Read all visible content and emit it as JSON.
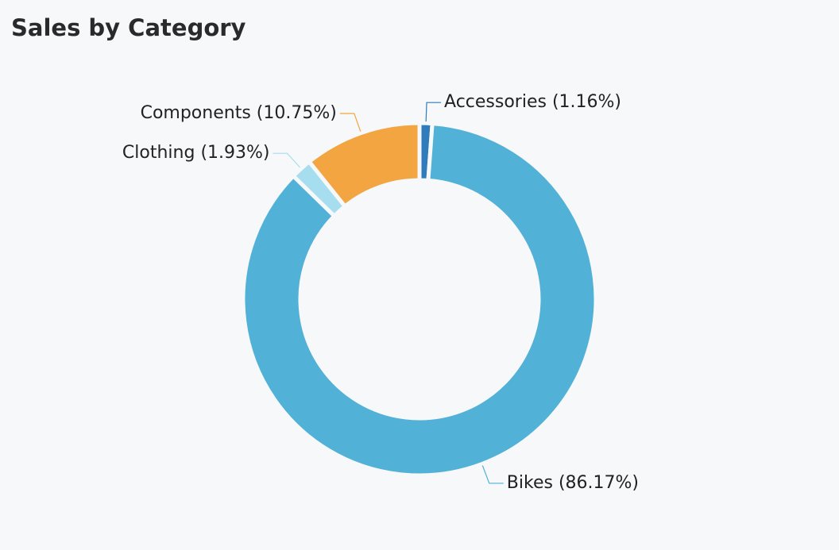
{
  "chart_data": {
    "type": "pie",
    "title": "Sales by Category",
    "values": [
      1.16,
      86.17,
      1.93,
      10.75
    ],
    "value_labels": [
      "Accessories (1.16%)",
      "Bikes (86.17%)",
      "Clothing (1.93%)",
      "Components (10.75%)"
    ],
    "colors": [
      "#2f7bbb",
      "#52b1d7",
      "#a6def0",
      "#f2a541"
    ]
  }
}
